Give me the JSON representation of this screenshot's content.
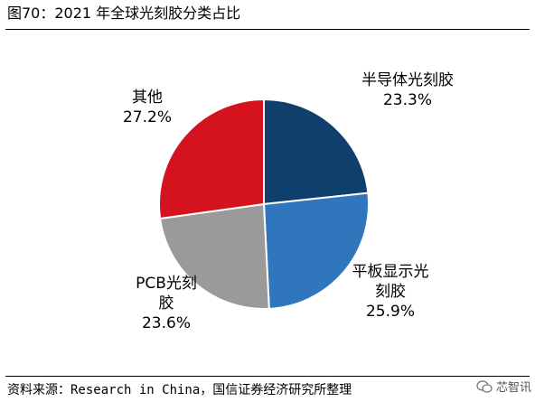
{
  "figure": {
    "title": "图70：2021 年全球光刻胶分类占比",
    "source_prefix": "资料来源：",
    "source_middle": "Research in China",
    "source_suffix": "，国信证券经济研究所整理",
    "watermark": "芯智讯"
  },
  "chart_data": {
    "type": "pie",
    "title": "",
    "slices": [
      {
        "label_lines": [
          "半导体光刻胶"
        ],
        "value": 23.3,
        "value_text": "23.3%",
        "color": "#0f3f6c"
      },
      {
        "label_lines": [
          "平板显示光",
          "刻胶"
        ],
        "value": 25.9,
        "value_text": "25.9%",
        "color": "#2f76bd"
      },
      {
        "label_lines": [
          "PCB光刻",
          "胶"
        ],
        "value": 23.6,
        "value_text": "23.6%",
        "color": "#9a9a9a"
      },
      {
        "label_lines": [
          "其他"
        ],
        "value": 27.2,
        "value_text": "27.2%",
        "color": "#d4131f"
      }
    ],
    "start_angle": "12 o'clock",
    "direction": "clockwise",
    "legend": "none"
  }
}
